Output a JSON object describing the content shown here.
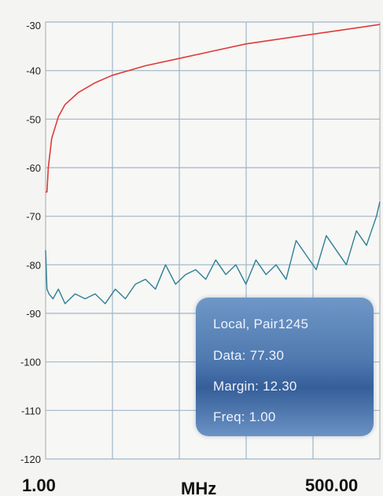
{
  "chart_data": {
    "type": "line",
    "x_axis": {
      "left_label": "1.00",
      "center_label": "MHz",
      "right_label": "500.00",
      "range": [
        1,
        500
      ]
    },
    "y_axis": {
      "ticks": [
        -30,
        -40,
        -50,
        -60,
        -70,
        -80,
        -90,
        -100,
        -110,
        -120
      ],
      "range": [
        -120,
        -30
      ]
    },
    "grid": true,
    "series": [
      {
        "color": "#e03a3a",
        "x": [
          1,
          3,
          5,
          10,
          20,
          30,
          50,
          75,
          100,
          150,
          200,
          250,
          300,
          350,
          400,
          450,
          500
        ],
        "y": [
          -65,
          -65,
          -60,
          -54,
          -49.5,
          -47,
          -44.5,
          -42.5,
          -41,
          -39,
          -37.5,
          -36,
          -34.5,
          -33.5,
          -32.5,
          -31.5,
          -30.5
        ]
      },
      {
        "color": "#2e7f96",
        "x": [
          1,
          3,
          6,
          12,
          20,
          30,
          45,
          60,
          75,
          90,
          105,
          120,
          135,
          150,
          165,
          180,
          195,
          210,
          225,
          240,
          255,
          270,
          285,
          300,
          315,
          330,
          345,
          360,
          375,
          390,
          405,
          420,
          435,
          450,
          465,
          480,
          495,
          500
        ],
        "y": [
          -77,
          -85,
          -86,
          -87,
          -85,
          -88,
          -86,
          -87,
          -86,
          -88,
          -85,
          -87,
          -84,
          -83,
          -85,
          -80,
          -84,
          -82,
          -81,
          -83,
          -79,
          -82,
          -80,
          -84,
          -79,
          -82,
          -80,
          -83,
          -75,
          -78,
          -81,
          -74,
          -77,
          -80,
          -73,
          -76,
          -70,
          -67
        ]
      }
    ]
  },
  "info_box": {
    "title": "Local, Pair1245",
    "data_label": "Data:",
    "data_value": "77.30",
    "margin_label": "Margin:",
    "margin_value": "12.30",
    "freq_label": "Freq:",
    "freq_value": "1.00"
  }
}
